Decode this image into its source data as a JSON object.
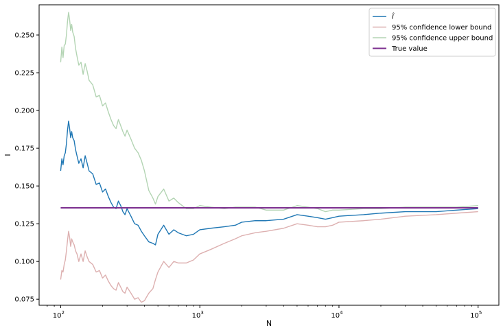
{
  "chart_data": {
    "type": "line",
    "xlabel": "N",
    "ylabel": "I",
    "x_scale": "log",
    "xlim": [
      70,
      141000
    ],
    "ylim": [
      0.071,
      0.27
    ],
    "grid": false,
    "legend_position": "top-right",
    "x_ticks": [
      {
        "value": 100,
        "base": "10",
        "exp": "2"
      },
      {
        "value": 1000,
        "base": "10",
        "exp": "3"
      },
      {
        "value": 10000,
        "base": "10",
        "exp": "4"
      },
      {
        "value": 100000,
        "base": "10",
        "exp": "5"
      }
    ],
    "y_ticks": [
      {
        "value": 0.075,
        "label": "0.075"
      },
      {
        "value": 0.1,
        "label": "0.100"
      },
      {
        "value": 0.125,
        "label": "0.125"
      },
      {
        "value": 0.15,
        "label": "0.150"
      },
      {
        "value": 0.175,
        "label": "0.175"
      },
      {
        "value": 0.2,
        "label": "0.200"
      },
      {
        "value": 0.225,
        "label": "0.225"
      },
      {
        "value": 0.25,
        "label": "0.250"
      }
    ],
    "series": [
      {
        "name": "Î",
        "color": "#1f77b4",
        "x": [
          100,
          102,
          104,
          106,
          108,
          110,
          112,
          114,
          116,
          118,
          120,
          122,
          125,
          128,
          131,
          135,
          140,
          145,
          150,
          155,
          160,
          170,
          180,
          190,
          200,
          210,
          220,
          230,
          240,
          250,
          260,
          270,
          280,
          290,
          300,
          320,
          340,
          360,
          380,
          400,
          430,
          460,
          480,
          500,
          550,
          600,
          650,
          700,
          800,
          900,
          1000,
          1200,
          1500,
          1800,
          2000,
          2500,
          3000,
          4000,
          5000,
          6000,
          7000,
          8000,
          9000,
          10000,
          15000,
          20000,
          30000,
          50000,
          70000,
          100000
        ],
        "y": [
          0.16,
          0.168,
          0.164,
          0.17,
          0.172,
          0.178,
          0.187,
          0.193,
          0.188,
          0.182,
          0.186,
          0.182,
          0.18,
          0.174,
          0.17,
          0.165,
          0.168,
          0.162,
          0.17,
          0.165,
          0.16,
          0.158,
          0.151,
          0.152,
          0.146,
          0.148,
          0.143,
          0.139,
          0.136,
          0.135,
          0.14,
          0.137,
          0.133,
          0.131,
          0.135,
          0.13,
          0.125,
          0.124,
          0.12,
          0.117,
          0.113,
          0.112,
          0.111,
          0.118,
          0.124,
          0.118,
          0.121,
          0.119,
          0.117,
          0.118,
          0.121,
          0.122,
          0.123,
          0.124,
          0.126,
          0.127,
          0.127,
          0.128,
          0.131,
          0.13,
          0.129,
          0.128,
          0.129,
          0.13,
          0.131,
          0.132,
          0.133,
          0.133,
          0.134,
          0.135
        ]
      },
      {
        "name": "95% confidence lower bound",
        "color": "#ddb0b0",
        "x": [
          100,
          102,
          104,
          106,
          108,
          110,
          112,
          114,
          116,
          118,
          120,
          122,
          125,
          128,
          131,
          135,
          140,
          145,
          150,
          155,
          160,
          170,
          180,
          190,
          200,
          210,
          220,
          230,
          240,
          250,
          260,
          270,
          280,
          290,
          300,
          320,
          340,
          360,
          380,
          400,
          430,
          460,
          480,
          500,
          550,
          600,
          650,
          700,
          800,
          900,
          1000,
          1200,
          1500,
          1800,
          2000,
          2500,
          3000,
          4000,
          5000,
          6000,
          7000,
          8000,
          9000,
          10000,
          15000,
          20000,
          30000,
          50000,
          70000,
          100000
        ],
        "y": [
          0.088,
          0.094,
          0.093,
          0.098,
          0.101,
          0.107,
          0.114,
          0.12,
          0.116,
          0.11,
          0.115,
          0.113,
          0.111,
          0.107,
          0.105,
          0.1,
          0.105,
          0.1,
          0.107,
          0.103,
          0.1,
          0.098,
          0.093,
          0.094,
          0.089,
          0.091,
          0.087,
          0.084,
          0.082,
          0.081,
          0.086,
          0.083,
          0.08,
          0.079,
          0.083,
          0.079,
          0.075,
          0.076,
          0.073,
          0.074,
          0.079,
          0.082,
          0.088,
          0.093,
          0.1,
          0.096,
          0.1,
          0.099,
          0.099,
          0.101,
          0.105,
          0.108,
          0.112,
          0.115,
          0.117,
          0.119,
          0.12,
          0.122,
          0.125,
          0.124,
          0.123,
          0.123,
          0.124,
          0.126,
          0.127,
          0.128,
          0.13,
          0.131,
          0.132,
          0.133
        ]
      },
      {
        "name": "95% confidence upper bound",
        "color": "#b3d4b3",
        "x": [
          100,
          102,
          104,
          106,
          108,
          110,
          112,
          114,
          116,
          118,
          120,
          122,
          125,
          128,
          131,
          135,
          140,
          145,
          150,
          155,
          160,
          170,
          180,
          190,
          200,
          210,
          220,
          230,
          240,
          250,
          260,
          270,
          280,
          290,
          300,
          320,
          340,
          360,
          380,
          400,
          430,
          460,
          480,
          500,
          550,
          600,
          650,
          700,
          800,
          900,
          1000,
          1200,
          1500,
          1800,
          2000,
          2500,
          3000,
          4000,
          5000,
          6000,
          7000,
          8000,
          9000,
          10000,
          15000,
          20000,
          30000,
          50000,
          70000,
          100000
        ],
        "y": [
          0.232,
          0.242,
          0.235,
          0.243,
          0.244,
          0.25,
          0.259,
          0.265,
          0.26,
          0.253,
          0.257,
          0.252,
          0.249,
          0.241,
          0.236,
          0.23,
          0.232,
          0.224,
          0.231,
          0.226,
          0.22,
          0.217,
          0.209,
          0.21,
          0.203,
          0.205,
          0.199,
          0.194,
          0.19,
          0.188,
          0.194,
          0.19,
          0.186,
          0.183,
          0.187,
          0.181,
          0.175,
          0.172,
          0.167,
          0.16,
          0.147,
          0.142,
          0.138,
          0.143,
          0.148,
          0.14,
          0.142,
          0.139,
          0.135,
          0.135,
          0.137,
          0.136,
          0.135,
          0.136,
          0.136,
          0.136,
          0.134,
          0.134,
          0.137,
          0.136,
          0.135,
          0.133,
          0.134,
          0.134,
          0.135,
          0.135,
          0.136,
          0.136,
          0.136,
          0.137
        ]
      },
      {
        "name": "True value",
        "color": "#7b2d8e",
        "x": [
          100,
          100000
        ],
        "y": [
          0.1355,
          0.1355
        ]
      }
    ]
  }
}
